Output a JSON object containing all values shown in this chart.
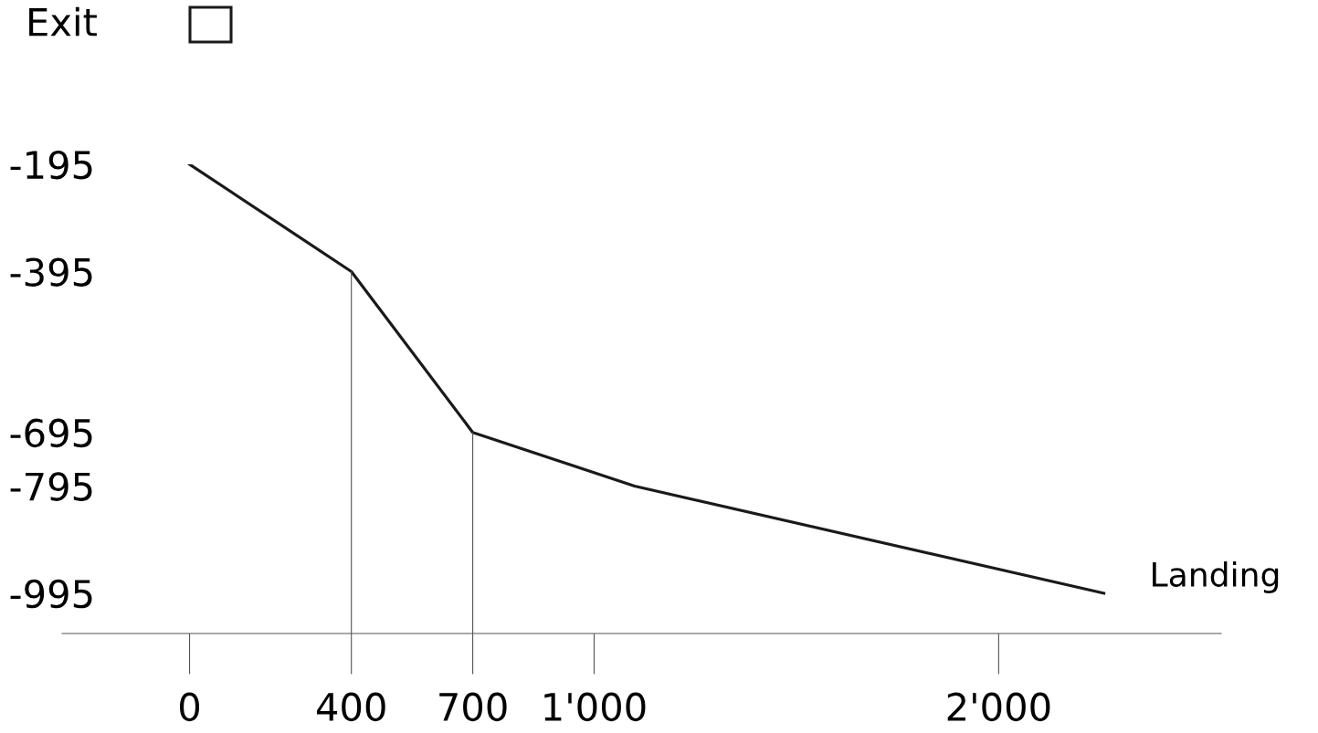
{
  "chart_data": {
    "type": "line",
    "x": [
      0,
      400,
      700,
      1100,
      2260
    ],
    "series": [
      {
        "color": "#1a1a1a",
        "values": [
          -195,
          -395,
          -695,
          -795,
          -995
        ]
      }
    ],
    "xlim": [
      -315,
      2550
    ],
    "xticks": [
      0,
      400,
      700,
      {
        "value": 1000,
        "label": "1'000"
      },
      {
        "value": 2000,
        "label": "2'000"
      }
    ],
    "ylim": [
      -1070,
      -195
    ],
    "yticks": [
      -195,
      -395,
      -695,
      -795,
      -995
    ],
    "ref_lines": [
      {
        "axis": "x",
        "value": 400,
        "color": "#555555"
      },
      {
        "axis": "x",
        "value": 700,
        "color": "#555555"
      }
    ],
    "annotations": [
      "Exit",
      {
        "text": "Landing",
        "x": 2260,
        "y": -995
      }
    ],
    "grid": false,
    "legend": false,
    "marker": "none",
    "line_style": "solid"
  }
}
